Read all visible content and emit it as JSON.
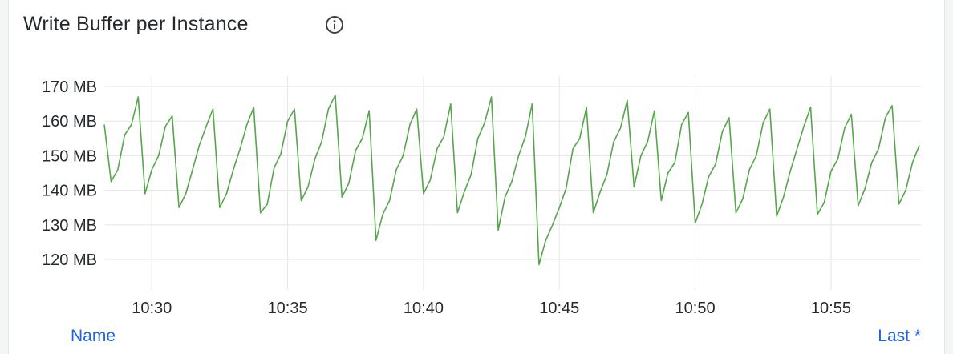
{
  "panel": {
    "title": "Write Buffer per Instance",
    "info_icon": "info-circle-icon",
    "legend": {
      "name_header": "Name",
      "last_header": "Last *"
    }
  },
  "colors": {
    "series": "#56a64b",
    "legend_link": "#1f62e0",
    "grid": "#e6e6e6"
  },
  "chart_data": {
    "type": "line",
    "title": "Write Buffer per Instance",
    "xlabel": "",
    "ylabel": "",
    "yunit": "MB",
    "ylim": [
      120,
      170
    ],
    "xlim": [
      "10:28:15",
      "10:58:15"
    ],
    "grid": true,
    "legend": "bottom",
    "y_ticks": [
      "170 MB",
      "160 MB",
      "150 MB",
      "140 MB",
      "130 MB",
      "120 MB"
    ],
    "x_ticks": [
      "10:30",
      "10:35",
      "10:40",
      "10:45",
      "10:50",
      "10:55"
    ],
    "series": [
      {
        "x": [
          "10:28:15",
          "10:28:30",
          "10:28:45",
          "10:29:00",
          "10:29:15",
          "10:29:30",
          "10:29:45",
          "10:30:00",
          "10:30:15",
          "10:30:30",
          "10:30:45",
          "10:31:00",
          "10:31:15",
          "10:31:30",
          "10:31:45",
          "10:32:00",
          "10:32:15",
          "10:32:30",
          "10:32:45",
          "10:33:00",
          "10:33:15",
          "10:33:30",
          "10:33:45",
          "10:34:00",
          "10:34:15",
          "10:34:30",
          "10:34:45",
          "10:35:00",
          "10:35:15",
          "10:35:30",
          "10:35:45",
          "10:36:00",
          "10:36:15",
          "10:36:30",
          "10:36:45",
          "10:37:00",
          "10:37:15",
          "10:37:30",
          "10:37:45",
          "10:38:00",
          "10:38:15",
          "10:38:30",
          "10:38:45",
          "10:39:00",
          "10:39:15",
          "10:39:30",
          "10:39:45",
          "10:40:00",
          "10:40:15",
          "10:40:30",
          "10:40:45",
          "10:41:00",
          "10:41:15",
          "10:41:30",
          "10:41:45",
          "10:42:00",
          "10:42:15",
          "10:42:30",
          "10:42:45",
          "10:43:00",
          "10:43:15",
          "10:43:30",
          "10:43:45",
          "10:44:00",
          "10:44:15",
          "10:44:30",
          "10:44:45",
          "10:45:00",
          "10:45:15",
          "10:45:30",
          "10:45:45",
          "10:46:00",
          "10:46:15",
          "10:46:30",
          "10:46:45",
          "10:47:00",
          "10:47:15",
          "10:47:30",
          "10:47:45",
          "10:48:00",
          "10:48:15",
          "10:48:30",
          "10:48:45",
          "10:49:00",
          "10:49:15",
          "10:49:30",
          "10:49:45",
          "10:50:00",
          "10:50:15",
          "10:50:30",
          "10:50:45",
          "10:51:00",
          "10:51:15",
          "10:51:30",
          "10:51:45",
          "10:52:00",
          "10:52:15",
          "10:52:30",
          "10:52:45",
          "10:53:00",
          "10:53:15",
          "10:53:30",
          "10:53:45",
          "10:54:00",
          "10:54:15",
          "10:54:30",
          "10:54:45",
          "10:55:00",
          "10:55:15",
          "10:55:30",
          "10:55:45",
          "10:56:00",
          "10:56:15",
          "10:56:30",
          "10:56:45",
          "10:57:00",
          "10:57:15",
          "10:57:30",
          "10:57:45",
          "10:58:00",
          "10:58:15"
        ],
        "values": [
          159,
          142.5,
          146,
          156,
          159,
          167,
          139,
          146,
          150,
          158.5,
          161.5,
          135,
          139,
          146,
          153,
          158.5,
          163.5,
          135,
          139,
          146,
          152,
          159,
          164,
          133.5,
          136,
          146.5,
          150.5,
          160,
          163.5,
          137,
          141,
          149,
          154,
          163.5,
          167.5,
          138,
          142,
          151.5,
          155,
          163,
          125.5,
          133,
          137,
          146,
          150,
          159,
          163.5,
          139,
          143,
          152,
          155.5,
          165,
          133.5,
          139.5,
          144.5,
          155,
          159.5,
          167,
          128.5,
          138,
          142.5,
          150,
          155.5,
          165,
          118.5,
          125.5,
          130,
          135,
          140.5,
          152,
          155,
          164,
          133.5,
          139.5,
          144.5,
          154,
          158,
          166,
          141,
          150,
          154,
          163,
          137,
          145,
          148,
          159,
          162.5,
          130.5,
          136,
          144,
          147.5,
          157,
          161,
          133.5,
          137.5,
          146,
          150,
          159.5,
          163.5,
          132.5,
          138,
          145.5,
          152,
          158.5,
          164,
          133,
          136.5,
          145.5,
          149,
          158,
          162,
          135.5,
          140.5,
          148,
          152,
          161,
          164.5,
          136,
          140,
          148,
          153
        ]
      }
    ]
  }
}
